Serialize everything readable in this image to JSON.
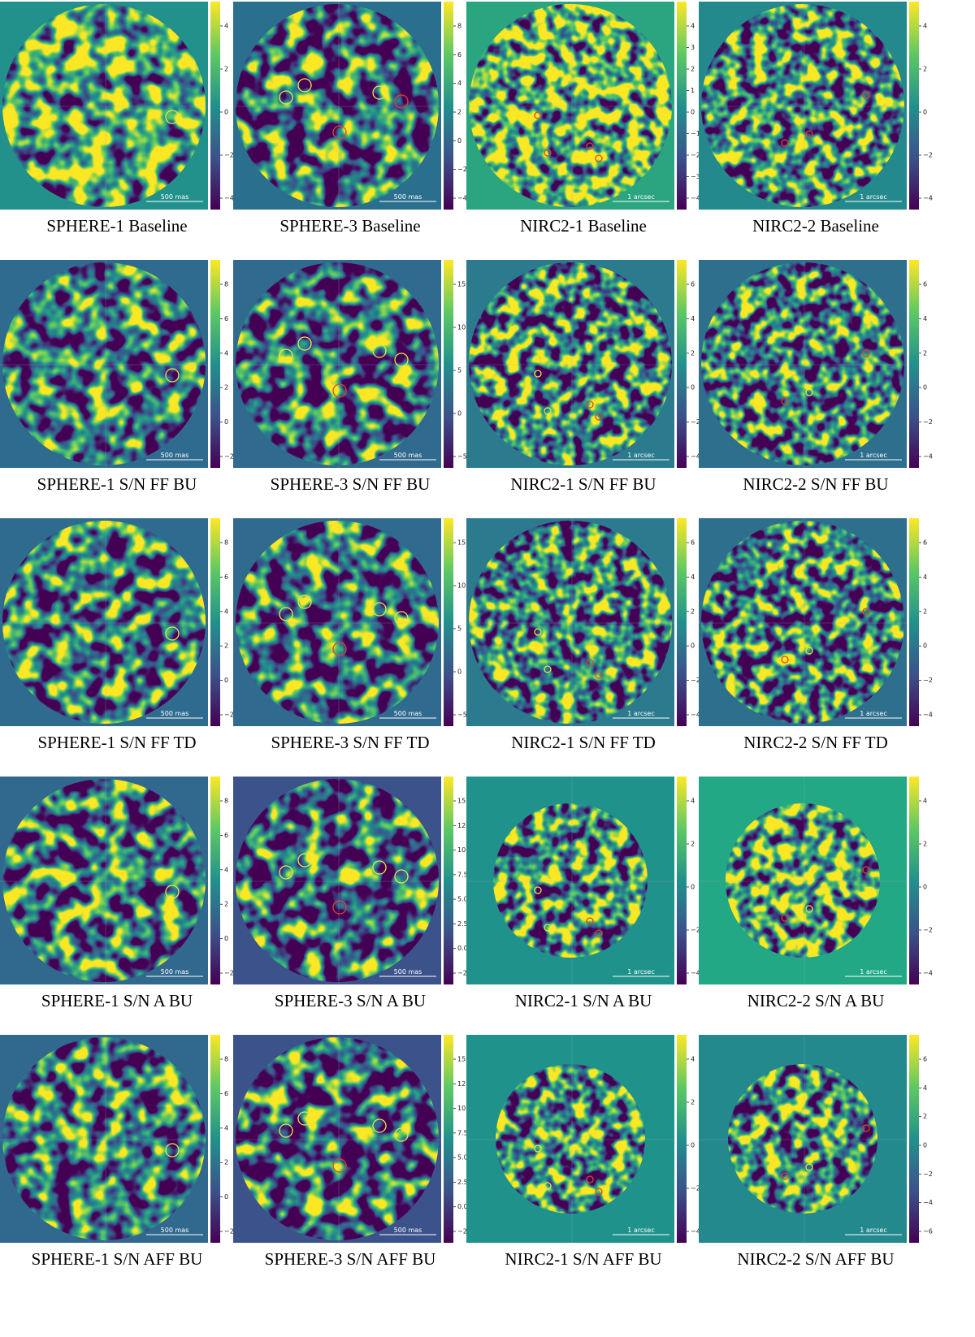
{
  "panels": [
    {
      "caption": "SPHERE-1 Baseline",
      "colorbar_ticks": [
        "4",
        "2",
        "0",
        "−2",
        "−4"
      ],
      "scale_label": "500 mas"
    },
    {
      "caption": "SPHERE-3 Baseline",
      "colorbar_ticks": [
        "8",
        "6",
        "4",
        "2",
        "0",
        "−2",
        "−4"
      ],
      "scale_label": "500 mas"
    },
    {
      "caption": "NIRC2-1 Baseline",
      "colorbar_ticks": [
        "4",
        "3",
        "2",
        "1",
        "0",
        "−1",
        "−2",
        "−3",
        "−4"
      ],
      "scale_label": "1 arcsec"
    },
    {
      "caption": "NIRC2-2 Baseline",
      "colorbar_ticks": [
        "4",
        "2",
        "0",
        "−2",
        "−4"
      ],
      "scale_label": "1 arcsec"
    },
    {
      "caption": "SPHERE-1 S/N FF BU",
      "colorbar_ticks": [
        "8",
        "6",
        "4",
        "2",
        "0",
        "−2"
      ],
      "scale_label": "500 mas"
    },
    {
      "caption": "SPHERE-3 S/N FF BU",
      "colorbar_ticks": [
        "15",
        "10",
        "5",
        "0",
        "−5"
      ],
      "scale_label": "500 mas"
    },
    {
      "caption": "NIRC2-1 S/N FF BU",
      "colorbar_ticks": [
        "6",
        "4",
        "2",
        "0",
        "−2",
        "−4"
      ],
      "scale_label": "1 arcsec"
    },
    {
      "caption": "NIRC2-2 S/N FF BU",
      "colorbar_ticks": [
        "6",
        "4",
        "2",
        "0",
        "−2",
        "−4"
      ],
      "scale_label": "1 arcsec"
    },
    {
      "caption": "SPHERE-1 S/N FF TD",
      "colorbar_ticks": [
        "8",
        "6",
        "4",
        "2",
        "0",
        "−2"
      ],
      "scale_label": "500 mas"
    },
    {
      "caption": "SPHERE-3 S/N FF TD",
      "colorbar_ticks": [
        "15",
        "10",
        "5",
        "0",
        "−5"
      ],
      "scale_label": "500 mas"
    },
    {
      "caption": "NIRC2-1 S/N FF TD",
      "colorbar_ticks": [
        "6",
        "4",
        "2",
        "0",
        "−2",
        "−4"
      ],
      "scale_label": "1 arcsec"
    },
    {
      "caption": "NIRC2-2 S/N FF TD",
      "colorbar_ticks": [
        "6",
        "4",
        "2",
        "0",
        "−2",
        "−4"
      ],
      "scale_label": "1 arcsec"
    },
    {
      "caption": "SPHERE-1 S/N A BU",
      "colorbar_ticks": [
        "8",
        "6",
        "4",
        "2",
        "0",
        "−2"
      ],
      "scale_label": "500 mas"
    },
    {
      "caption": "SPHERE-3 S/N A BU",
      "colorbar_ticks": [
        "15.0",
        "12.5",
        "10.0",
        "7.5",
        "5.0",
        "2.5",
        "0.0",
        "−2.5"
      ],
      "scale_label": "500 mas"
    },
    {
      "caption": "NIRC2-1 S/N A BU",
      "colorbar_ticks": [
        "4",
        "2",
        "0",
        "−2",
        "−4"
      ],
      "scale_label": "1 arcsec"
    },
    {
      "caption": "NIRC2-2 S/N A BU",
      "colorbar_ticks": [
        "4",
        "2",
        "0",
        "−2",
        "−4"
      ],
      "scale_label": "1 arcsec"
    },
    {
      "caption": "SPHERE-1 S/N AFF BU",
      "colorbar_ticks": [
        "8",
        "6",
        "4",
        "2",
        "0",
        "−2"
      ],
      "scale_label": "500 mas"
    },
    {
      "caption": "SPHERE-3 S/N AFF BU",
      "colorbar_ticks": [
        "15.0",
        "12.5",
        "10.0",
        "7.5",
        "5.0",
        "2.5",
        "0.0",
        "−2.5"
      ],
      "scale_label": "500 mas"
    },
    {
      "caption": "NIRC2-1 S/N AFF BU",
      "colorbar_ticks": [
        "4",
        "2",
        "0",
        "−2",
        "−4"
      ],
      "scale_label": "1 arcsec"
    },
    {
      "caption": "NIRC2-2 S/N AFF BU",
      "colorbar_ticks": [
        "6",
        "4",
        "2",
        "0",
        "−2",
        "−4",
        "−6"
      ],
      "scale_label": "1 arcsec"
    }
  ]
}
